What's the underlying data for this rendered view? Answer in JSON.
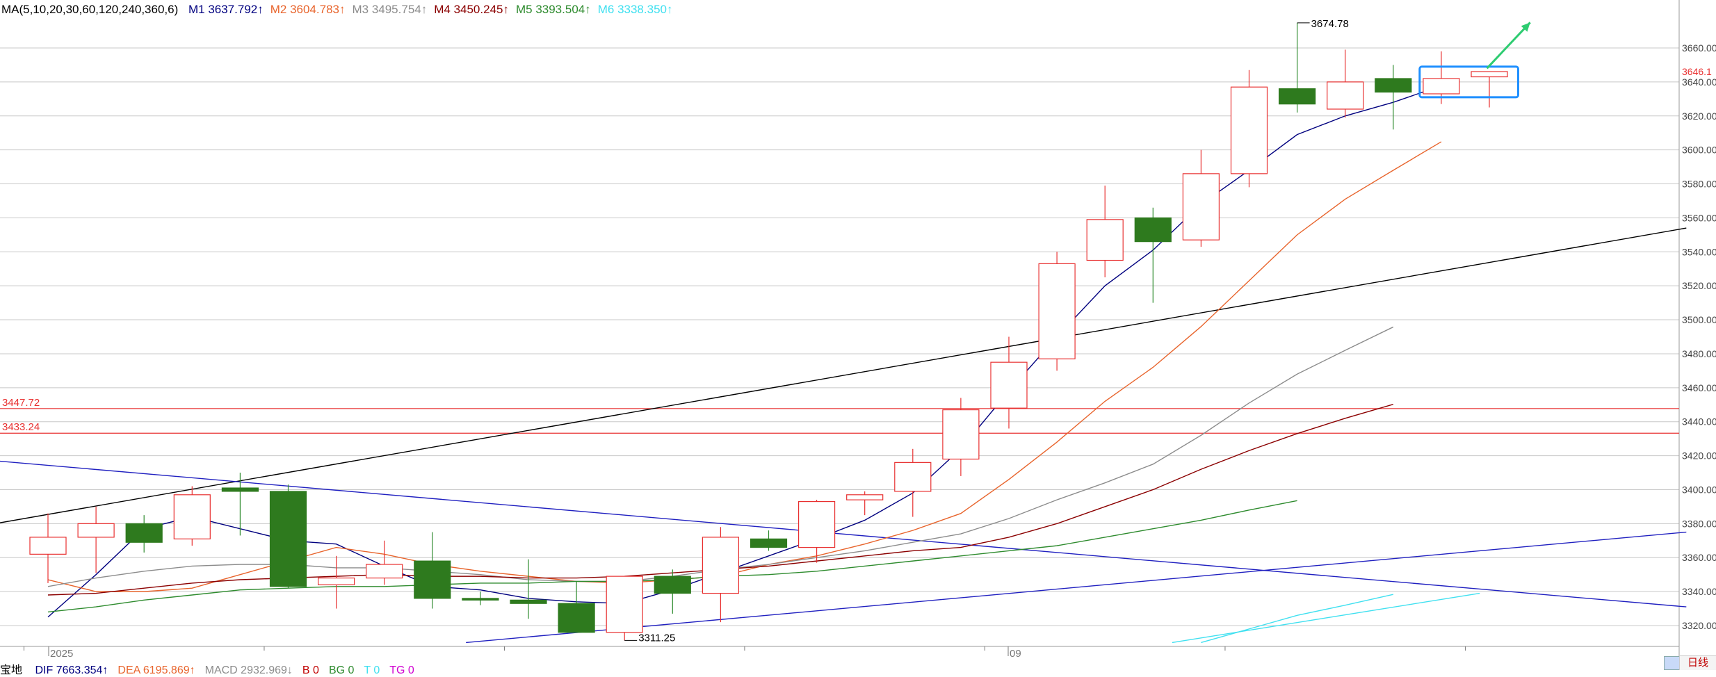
{
  "ma_header": {
    "params": "MA(5,10,20,30,60,120,240,360,6)",
    "items": [
      {
        "label": "M1",
        "value": "3637.792↑",
        "color": "#00007f"
      },
      {
        "label": "M2",
        "value": "3604.783↑",
        "color": "#e8642c"
      },
      {
        "label": "M3",
        "value": "3495.754↑",
        "color": "#8c8c8c"
      },
      {
        "label": "M4",
        "value": "3450.245↑",
        "color": "#8b0000"
      },
      {
        "label": "M5",
        "value": "3393.504↑",
        "color": "#2e8b2e"
      },
      {
        "label": "M6",
        "value": "3338.350↑",
        "color": "#40e0f0"
      }
    ]
  },
  "bottom_indicators": {
    "name": "宝地",
    "items": [
      {
        "text": "DIF 7663.354↑",
        "color": "#00007f"
      },
      {
        "text": "DEA 6195.869↑",
        "color": "#e8642c"
      },
      {
        "text": "MACD 2932.969↓",
        "color": "#8c8c8c"
      },
      {
        "text": "B 0",
        "color": "#c00000"
      },
      {
        "text": "BG 0",
        "color": "#2e8b2e"
      },
      {
        "text": "T 0",
        "color": "#40e0f0"
      },
      {
        "text": "TG 0",
        "color": "#d000d0"
      }
    ]
  },
  "period_tab": "日线",
  "colors": {
    "up": "#e83030",
    "down": "#2e7a1e",
    "grid": "#c8c8c8",
    "price_label": "#e83030",
    "highlight_box": "#1e8fff",
    "arrow": "#2ecc71"
  },
  "chart_data": {
    "type": "candlestick",
    "x_labels": [
      {
        "index": 0,
        "text": "2025"
      },
      {
        "index": 20,
        "text": "09"
      }
    ],
    "y_axis": {
      "min": 3310,
      "max": 3677,
      "ticks": [
        3320,
        3340,
        3360,
        3380,
        3400,
        3420,
        3440,
        3460,
        3480,
        3500,
        3520,
        3540,
        3560,
        3580,
        3600,
        3620,
        3640,
        3660
      ],
      "tick_labels": [
        "3320.00",
        "3340.00",
        "3360.00",
        "3380.00",
        "3400.00",
        "3420.00",
        "3440.00",
        "3460.00",
        "3480.00",
        "3500.00",
        "3520.00",
        "3540.00",
        "3560.00",
        "3580.00",
        "3600.00",
        "3620.00",
        "3640.00",
        "3660.00"
      ],
      "current_price": 3646.1,
      "current_price_label": "3646.1"
    },
    "candles": [
      {
        "o": 3362,
        "h": 3386,
        "l": 3345,
        "c": 3372
      },
      {
        "o": 3372,
        "h": 3390,
        "l": 3351,
        "c": 3380
      },
      {
        "o": 3380,
        "h": 3385,
        "l": 3363,
        "c": 3369
      },
      {
        "o": 3371,
        "h": 3402,
        "l": 3367,
        "c": 3397
      },
      {
        "o": 3401,
        "h": 3410,
        "l": 3373,
        "c": 3399
      },
      {
        "o": 3399,
        "h": 3403,
        "l": 3342,
        "c": 3343
      },
      {
        "o": 3344,
        "h": 3361,
        "l": 3330,
        "c": 3348
      },
      {
        "o": 3348,
        "h": 3370,
        "l": 3344,
        "c": 3356
      },
      {
        "o": 3358,
        "h": 3375,
        "l": 3330,
        "c": 3336
      },
      {
        "o": 3336,
        "h": 3340,
        "l": 3332,
        "c": 3335
      },
      {
        "o": 3335,
        "h": 3359,
        "l": 3324,
        "c": 3333
      },
      {
        "o": 3333,
        "h": 3346,
        "l": 3318,
        "c": 3316
      },
      {
        "o": 3316,
        "h": 3349,
        "l": 3311.25,
        "c": 3349
      },
      {
        "o": 3349,
        "h": 3353,
        "l": 3327,
        "c": 3339
      },
      {
        "o": 3339,
        "h": 3378,
        "l": 3322,
        "c": 3372
      },
      {
        "o": 3371,
        "h": 3376,
        "l": 3364,
        "c": 3366
      },
      {
        "o": 3366,
        "h": 3394,
        "l": 3357,
        "c": 3393
      },
      {
        "o": 3394,
        "h": 3399,
        "l": 3385,
        "c": 3397
      },
      {
        "o": 3399,
        "h": 3424,
        "l": 3384,
        "c": 3416
      },
      {
        "o": 3418,
        "h": 3454,
        "l": 3408,
        "c": 3447
      },
      {
        "o": 3448,
        "h": 3490,
        "l": 3436,
        "c": 3475
      },
      {
        "o": 3477,
        "h": 3540,
        "l": 3470,
        "c": 3533
      },
      {
        "o": 3535,
        "h": 3579,
        "l": 3525,
        "c": 3559
      },
      {
        "o": 3560,
        "h": 3566,
        "l": 3510,
        "c": 3546
      },
      {
        "o": 3547,
        "h": 3600,
        "l": 3543,
        "c": 3586
      },
      {
        "o": 3586,
        "h": 3647,
        "l": 3578,
        "c": 3637
      },
      {
        "o": 3636,
        "h": 3674.78,
        "l": 3622,
        "c": 3627
      },
      {
        "o": 3624,
        "h": 3659,
        "l": 3619,
        "c": 3640
      },
      {
        "o": 3642,
        "h": 3650,
        "l": 3612,
        "c": 3634
      },
      {
        "o": 3633,
        "h": 3658,
        "l": 3627,
        "c": 3642
      },
      {
        "o": 3643,
        "h": 3646,
        "l": 3625,
        "c": 3646.1
      }
    ],
    "ma_lines": [
      {
        "name": "M1",
        "color": "#00007f",
        "start": 0,
        "values": [
          3325,
          3350,
          3377,
          3384,
          3377,
          3370,
          3368,
          3355,
          3343,
          3341,
          3336,
          3334,
          3333,
          3341,
          3351,
          3361,
          3371,
          3382,
          3398,
          3424,
          3458,
          3490,
          3520,
          3541,
          3568,
          3588,
          3609,
          3620,
          3628,
          3637.792
        ]
      },
      {
        "name": "M2",
        "color": "#e8642c",
        "start": 0,
        "values": [
          3347,
          3340,
          3340,
          3342,
          3350,
          3358,
          3366,
          3362,
          3356,
          3352,
          3349,
          3346,
          3345,
          3347,
          3349,
          3356,
          3361,
          3368,
          3376,
          3386,
          3406,
          3428,
          3452,
          3472,
          3496,
          3523,
          3550,
          3571,
          3588,
          3604.783
        ]
      },
      {
        "name": "M3",
        "color": "#8c8c8c",
        "start": 0,
        "values": [
          3343,
          3348,
          3352,
          3355,
          3356,
          3356,
          3354,
          3354,
          3352,
          3350,
          3347,
          3346,
          3346,
          3349,
          3353,
          3356,
          3360,
          3364,
          3369,
          3374,
          3383,
          3394,
          3404,
          3415,
          3432,
          3451,
          3468,
          3482,
          3495.754
        ]
      },
      {
        "name": "M4",
        "color": "#8b0000",
        "start": 0,
        "values": [
          3338,
          3339,
          3342,
          3345,
          3347,
          3348,
          3349,
          3350,
          3349,
          3349,
          3348,
          3348,
          3349,
          3351,
          3353,
          3355,
          3358,
          3361,
          3364,
          3366,
          3372,
          3380,
          3390,
          3400,
          3412,
          3423,
          3433,
          3442,
          3450.245
        ]
      },
      {
        "name": "M5",
        "color": "#2e8b2e",
        "start": 0,
        "values": [
          3328,
          3331,
          3335,
          3338,
          3341,
          3342,
          3343,
          3343,
          3344,
          3345,
          3345,
          3346,
          3346,
          3347,
          3349,
          3350,
          3352,
          3355,
          3358,
          3361,
          3364,
          3367,
          3372,
          3377,
          3382,
          3388,
          3393.504
        ]
      },
      {
        "name": "M6",
        "color": "#40e0f0",
        "start": 24,
        "values": [
          3310,
          3318,
          3326,
          3332,
          3338.35
        ]
      }
    ],
    "price_levels": [
      {
        "value": 3447.72,
        "label": "3447.72"
      },
      {
        "value": 3433.24,
        "label": "3433.24"
      }
    ],
    "annotations": [
      {
        "type": "high",
        "index": 26,
        "value": 3674.78,
        "label": "3674.78"
      },
      {
        "type": "low",
        "index": 12,
        "value": 3311.25,
        "label": "3311.25"
      }
    ],
    "trendlines": [
      {
        "color": "#000000",
        "from": [
          -1.1,
          3380
        ],
        "to": [
          34.1,
          3554
        ]
      },
      {
        "color": "#2020c0",
        "from": [
          -1.1,
          3417
        ],
        "to": [
          34.1,
          3331
        ]
      },
      {
        "color": "#2020c0",
        "from": [
          8.7,
          3310
        ],
        "to": [
          34.1,
          3375
        ]
      },
      {
        "color": "#40e0f0",
        "from": [
          23.4,
          3310
        ],
        "to": [
          29.8,
          3339
        ]
      }
    ]
  }
}
